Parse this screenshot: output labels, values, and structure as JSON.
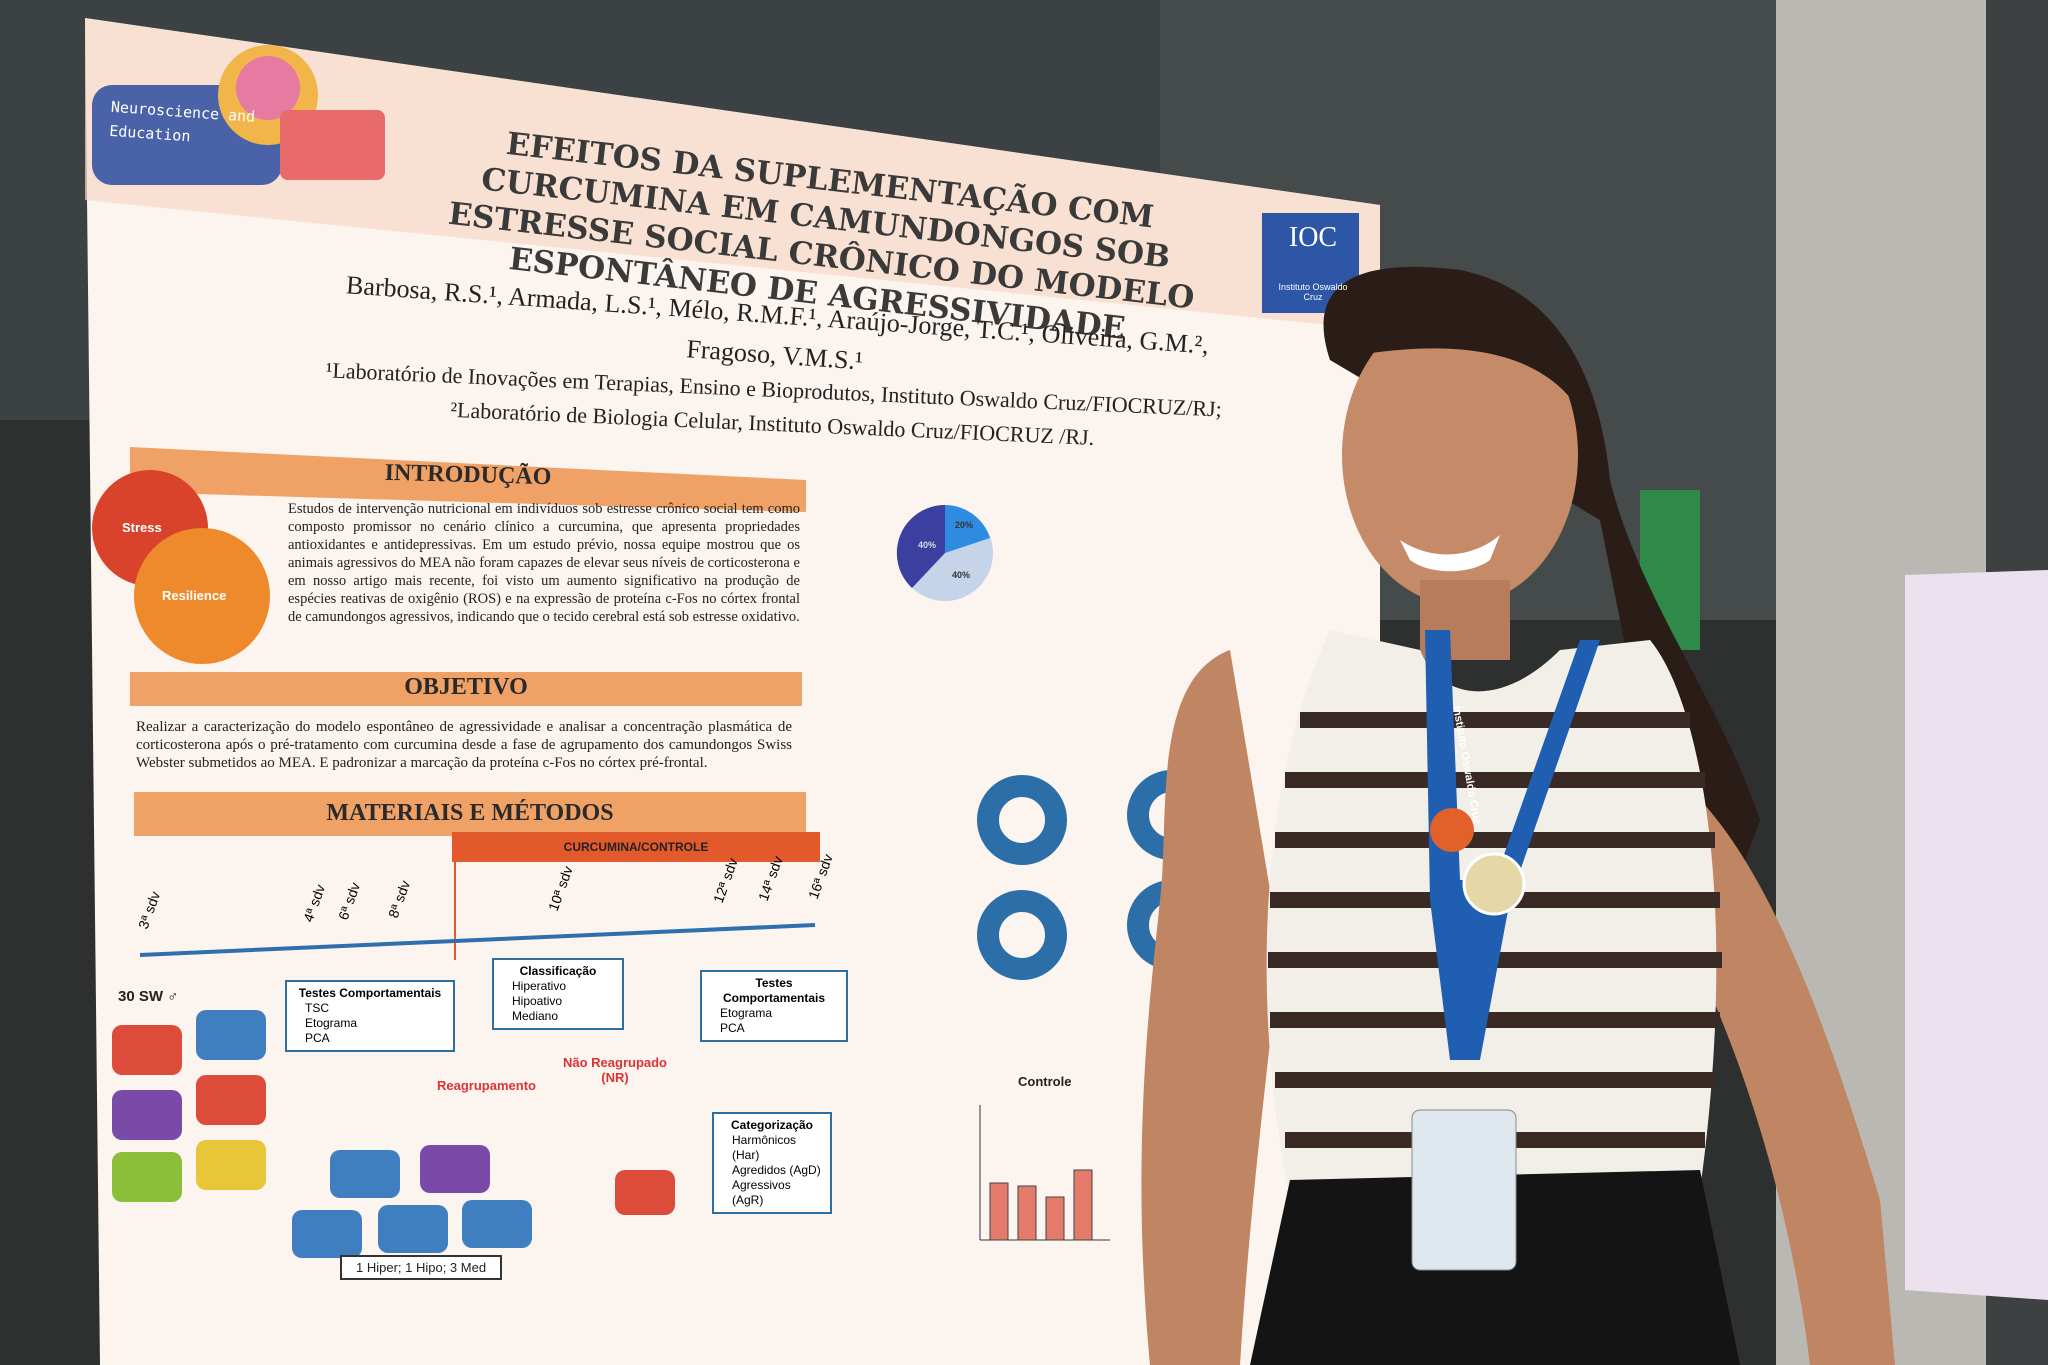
{
  "poster": {
    "badge": "Neuroscience and Education",
    "title": "EFEITOS DA SUPLEMENTAÇÃO COM CURCUMINA EM CAMUNDONGOS SOB ESTRESSE SOCIAL CRÔNICO DO MODELO ESPONTÂNEO DE AGRESSIVIDADE",
    "logo": {
      "abbr": "IOC",
      "name": "Instituto Oswaldo Cruz"
    },
    "authors": "Barbosa, R.S.¹, Armada, L.S.¹, Mélo, R.M.F.¹, Araújo-Jorge, T.C.¹, Oliveira, G.M.², Fragoso, V.M.S.¹",
    "affiliations": [
      "¹Laboratório de Inovações em Terapias, Ensino e Bioprodutos, Instituto Oswaldo Cruz/FIOCRUZ/RJ;",
      "²Laboratório de Biologia Celular, Instituto Oswaldo Cruz/FIOCRUZ /RJ."
    ],
    "sections": [
      {
        "heading": "INTRODUÇÃO",
        "text": "Estudos de intervenção nutricional em indivíduos sob estresse crônico social tem como composto promissor no cenário clínico a curcumina, que apresenta propriedades antioxidantes e antidepressivas. Em um estudo prévio, nossa equipe mostrou que os animais agressivos do MEA não foram capazes de elevar seus níveis de corticosterona e em nosso artigo mais recente, foi visto um aumento significativo na produção de espécies reativas de oxigênio (ROS) e na expressão de proteína c-Fos no córtex frontal de camundongos agressivos, indicando que o tecido cerebral está sob estresse oxidativo."
      },
      {
        "heading": "OBJETIVO",
        "text": "Realizar a caracterização do modelo espontâneo de agressividade e analisar a concentração plasmática de corticosterona após o pré-tratamento com curcumina desde a fase de agrupamento dos camundongos Swiss Webster submetidos ao MEA. E padronizar a marcação da proteína c-Fos no córtex pré-frontal."
      },
      {
        "heading": "MATERIAIS E MÉTODOS"
      }
    ],
    "diagram": {
      "stress": "Stress",
      "resilience": "Resilience",
      "treatment": "CURCUMINA/CONTROLE",
      "timepoints": [
        "3ª sdv",
        "4ª sdv",
        "6ª sdv",
        "8ª sdv",
        "10ª sdv",
        "12ª sdv",
        "14ª sdv",
        "16ª sdv"
      ],
      "group": "30 SW ♂",
      "boxes": [
        {
          "title": "Testes Comportamentais",
          "items": [
            "TSC",
            "Etograma",
            "PCA"
          ]
        },
        {
          "title": "Classificação",
          "items": [
            "Hiperativo",
            "Hipoativo",
            "Mediano"
          ]
        },
        {
          "title": "Testes Comportamentais",
          "items": [
            "Etograma",
            "PCA"
          ]
        },
        {
          "title": "Categorização",
          "items": [
            "Harmônicos (Har)",
            "Agredidos (AgD)",
            "Agressivos (AgR)"
          ]
        }
      ],
      "regroup": "Reagrupamento",
      "not_regrouped": "Não Reagrupado (NR)",
      "result": "1 Hiper; 1 Hipo; 3 Med"
    },
    "pie_labels": [
      "20%",
      "40%",
      "40%"
    ],
    "chart_title": "Controle"
  },
  "lanyard": "Instituto Oswaldo Cruz"
}
